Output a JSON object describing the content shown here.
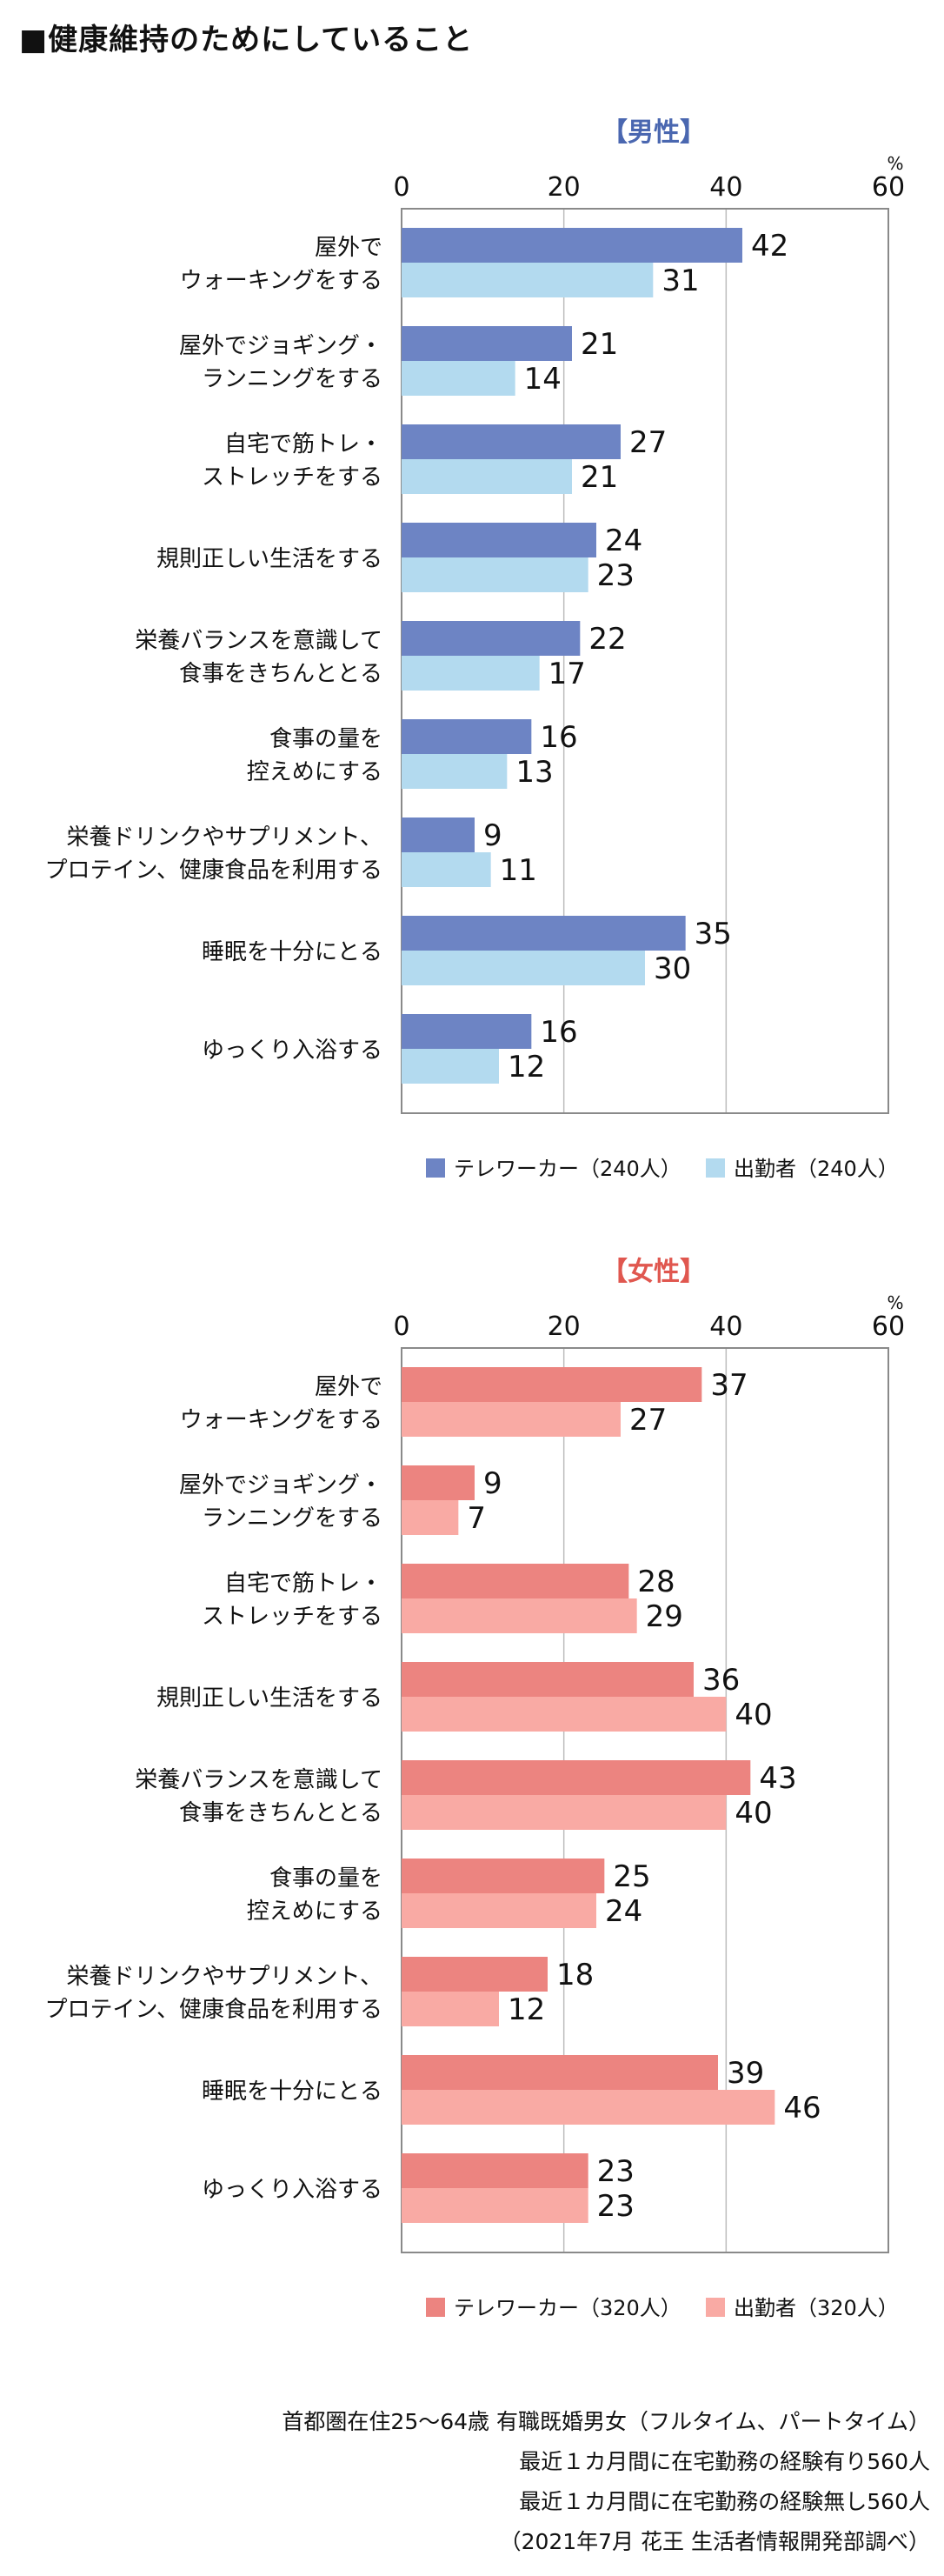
{
  "page_title": "■健康維持のためにしていること",
  "chart_data": [
    {
      "type": "bar",
      "orientation": "horizontal",
      "title": "【男性】",
      "title_color": "#4a67b0",
      "unit_label": "%",
      "xlim": [
        0,
        60
      ],
      "ticks": [
        0,
        20,
        40,
        60
      ],
      "categories": [
        "屋外で\nウォーキングをする",
        "屋外でジョギング・\nランニングをする",
        "自宅で筋トレ・\nストレッチをする",
        "規則正しい生活をする",
        "栄養バランスを意識して\n食事をきちんととる",
        "食事の量を\n控えめにする",
        "栄養ドリンクやサプリメント、\nプロテイン、健康食品を利用する",
        "睡眠を十分にとる",
        "ゆっくり入浴する"
      ],
      "series": [
        {
          "name": "テレワーカー（240人）",
          "color": "#6d84c4",
          "values": [
            42,
            21,
            27,
            24,
            22,
            16,
            9,
            35,
            16
          ]
        },
        {
          "name": "出勤者（240人）",
          "color": "#b3daef",
          "values": [
            31,
            14,
            21,
            23,
            17,
            13,
            11,
            30,
            12
          ]
        }
      ],
      "legend_position": "bottom",
      "grid": true
    },
    {
      "type": "bar",
      "orientation": "horizontal",
      "title": "【女性】",
      "title_color": "#e0574f",
      "unit_label": "%",
      "xlim": [
        0,
        60
      ],
      "ticks": [
        0,
        20,
        40,
        60
      ],
      "categories": [
        "屋外で\nウォーキングをする",
        "屋外でジョギング・\nランニングをする",
        "自宅で筋トレ・\nストレッチをする",
        "規則正しい生活をする",
        "栄養バランスを意識して\n食事をきちんととる",
        "食事の量を\n控えめにする",
        "栄養ドリンクやサプリメント、\nプロテイン、健康食品を利用する",
        "睡眠を十分にとる",
        "ゆっくり入浴する"
      ],
      "series": [
        {
          "name": "テレワーカー（320人）",
          "color": "#ec8480",
          "values": [
            37,
            9,
            28,
            36,
            43,
            25,
            18,
            39,
            23
          ]
        },
        {
          "name": "出勤者（320人）",
          "color": "#f9aaa4",
          "values": [
            27,
            7,
            29,
            40,
            40,
            24,
            12,
            46,
            23
          ]
        }
      ],
      "legend_position": "bottom",
      "grid": true
    }
  ],
  "footer_notes": [
    "首都圏在住25～64歳 有職既婚男女（フルタイム、パートタイム）",
    "最近１カ月間に在宅勤務の経験有り560人",
    "最近１カ月間に在宅勤務の経験無し560人",
    "（2021年7月 花王 生活者情報開発部調べ）"
  ]
}
